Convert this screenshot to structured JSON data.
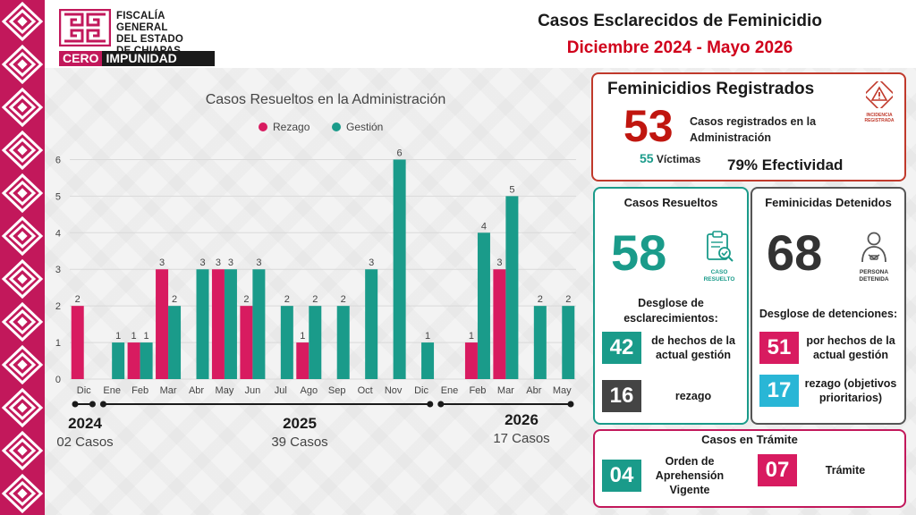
{
  "header": {
    "logo_lines": [
      "FISCALÍA GENERAL",
      "DEL ESTADO",
      "DE CHIAPAS"
    ],
    "logo_tag_1": "CERO",
    "logo_tag_2": "IMPUNIDAD",
    "title": "Casos Esclarecidos de Feminicidio",
    "subtitle": "Diciembre 2024 - Mayo 2026"
  },
  "colors": {
    "rezago": "#d81b60",
    "gestion": "#1a9b8a",
    "accent_red": "#c0160f",
    "dark": "#444444",
    "cyan": "#29b6d6"
  },
  "chart_data": {
    "type": "bar",
    "title": "Casos Resueltos en la Administración",
    "categories": [
      "Dic",
      "Ene",
      "Feb",
      "Mar",
      "Abr",
      "May",
      "Jun",
      "Jul",
      "Ago",
      "Sep",
      "Oct",
      "Nov",
      "Dic",
      "Ene",
      "Feb",
      "Mar",
      "Abr",
      "May"
    ],
    "series": [
      {
        "name": "Rezago",
        "values": [
          2,
          0,
          1,
          3,
          0,
          3,
          2,
          0,
          1,
          0,
          0,
          0,
          0,
          0,
          1,
          3,
          0,
          0
        ]
      },
      {
        "name": "Gestión",
        "values": [
          0,
          1,
          1,
          2,
          3,
          3,
          3,
          2,
          2,
          2,
          3,
          6,
          1,
          0,
          4,
          5,
          2,
          2
        ]
      }
    ],
    "y_ticks": [
      "0",
      "1",
      "2",
      "3",
      "4",
      "5",
      "6"
    ],
    "ylim": [
      0,
      6.5
    ],
    "grid": true,
    "legend_position": "top-center",
    "year_groups": [
      {
        "year": "2024",
        "cases": "02 Casos"
      },
      {
        "year": "2025",
        "cases": "39 Casos"
      },
      {
        "year": "2026",
        "cases": "17 Casos"
      }
    ]
  },
  "registered": {
    "title": "Feminicidios Registrados",
    "number": "53",
    "text": "Casos registrados en la Administración",
    "victims_number": "55",
    "victims_label": "Víctimas",
    "effectiveness": "79% Efectividad",
    "icon": "warning-triangle-icon",
    "icon_caption_1": "INCIDENCIA",
    "icon_caption_2": "REGISTRADA"
  },
  "resolved": {
    "title": "Casos Resueltos",
    "number": "58",
    "icon": "clipboard-check-icon",
    "icon_caption_1": "CASO",
    "icon_caption_2": "RESUELTO",
    "breakdown_title": "Desglose de esclarecimientos:",
    "items": [
      {
        "value": "42",
        "label": "de hechos de la actual gestión"
      },
      {
        "value": "16",
        "label": "rezago"
      }
    ]
  },
  "detained": {
    "title": "Feminicidas Detenidos",
    "number": "68",
    "icon": "detained-person-icon",
    "icon_caption_1": "PERSONA",
    "icon_caption_2": "DETENIDA",
    "breakdown_title": "Desglose de detenciones:",
    "items": [
      {
        "value": "51",
        "label": "por hechos de la actual gestión"
      },
      {
        "value": "17",
        "label": "rezago (objetivos prioritarios)"
      }
    ]
  },
  "in_process": {
    "title": "Casos en Trámite",
    "items": [
      {
        "value": "04",
        "label": "Orden de Aprehensión Vigente"
      },
      {
        "value": "07",
        "label": "Trámite"
      }
    ]
  }
}
